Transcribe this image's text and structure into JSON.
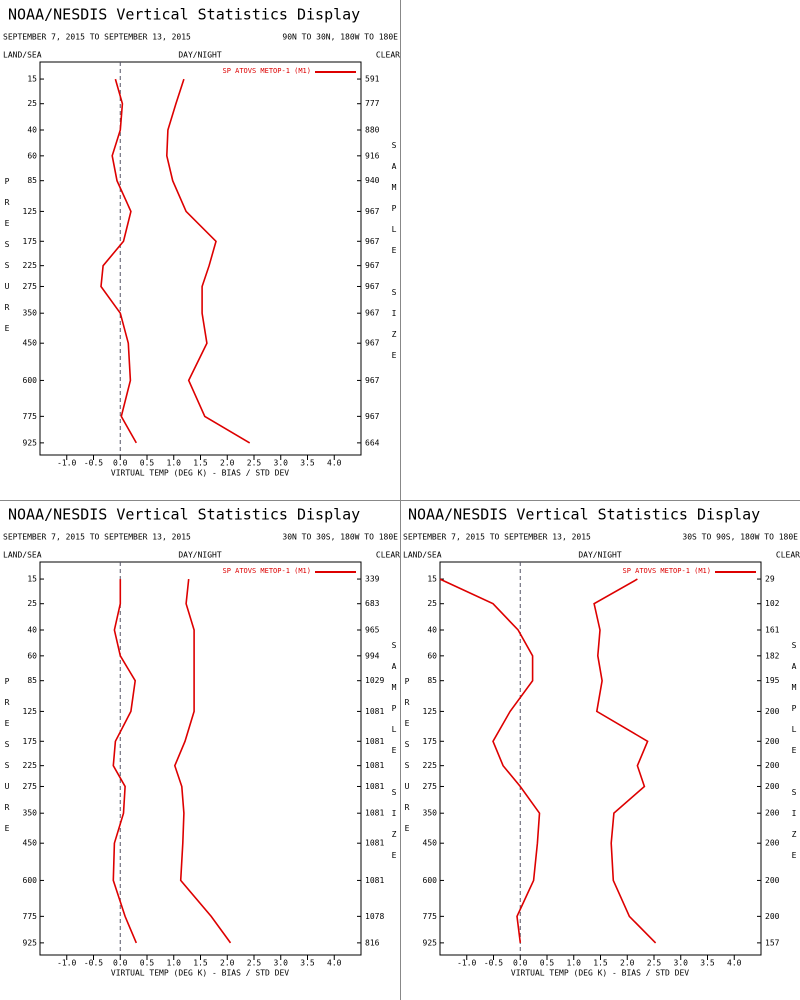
{
  "chart_data": [
    {
      "type": "line",
      "title": "NOAA/NESDIS Vertical Statistics Display",
      "subtitle": "SEPTEMBER 7, 2015 TO SEPTEMBER 13, 2015",
      "region": "90N TO 30N, 180W TO 180E",
      "land_sea": "LAND/SEA",
      "day_night": "DAY/NIGHT",
      "sky": "CLEAR",
      "y_label": "PRESSURE",
      "y2_label": "SAMPLE SIZE",
      "x_label": "VIRTUAL TEMP (DEG K) - BIAS / STD DEV",
      "y": [
        15,
        25,
        40,
        60,
        85,
        125,
        175,
        225,
        275,
        350,
        450,
        600,
        775,
        925
      ],
      "sample_size": [
        591,
        777,
        880,
        916,
        940,
        967,
        967,
        967,
        967,
        967,
        967,
        967,
        967,
        664
      ],
      "series": [
        {
          "name": "SP ATOVS METOP-1 (M1)",
          "color": "#dd0000",
          "bias": [
            -0.09,
            0.04,
            0.0,
            -0.15,
            -0.06,
            0.2,
            0.06,
            -0.32,
            -0.36,
            0.0,
            0.15,
            0.19,
            0.02,
            0.3
          ],
          "std_dev": [
            1.19,
            1.04,
            0.89,
            0.87,
            0.98,
            1.23,
            1.79,
            1.66,
            1.53,
            1.53,
            1.62,
            1.28,
            1.58,
            2.42
          ]
        }
      ],
      "reference_line": 0,
      "y_power": 0.3,
      "y_inverted": true,
      "xlim": [
        -1.5,
        4.5
      ],
      "ylim": [
        10,
        1000
      ],
      "xticks": [
        {
          "value": -1,
          "label": "-1.0"
        },
        -0.5,
        {
          "value": 0,
          "label": "0.0"
        },
        0.5,
        {
          "value": 1,
          "label": "1.0"
        },
        1.5,
        {
          "value": 2,
          "label": "2.0"
        },
        2.5,
        {
          "value": 3,
          "label": "3.0"
        },
        3.5,
        {
          "value": 4,
          "label": "4.0"
        }
      ]
    },
    {
      "type": "line",
      "title": "NOAA/NESDIS Vertical Statistics Display",
      "subtitle": "SEPTEMBER 7, 2015 TO SEPTEMBER 13, 2015",
      "region": "30N TO 30S, 180W TO 180E",
      "land_sea": "LAND/SEA",
      "day_night": "DAY/NIGHT",
      "sky": "CLEAR",
      "y_label": "PRESSURE",
      "y2_label": "SAMPLE SIZE",
      "x_label": "VIRTUAL TEMP (DEG K) - BIAS / STD DEV",
      "y": [
        15,
        25,
        40,
        60,
        85,
        125,
        175,
        225,
        275,
        350,
        450,
        600,
        775,
        925
      ],
      "sample_size": [
        339,
        683,
        965,
        994,
        1029,
        1081,
        1081,
        1081,
        1081,
        1081,
        1081,
        1081,
        1078,
        816
      ],
      "series": [
        {
          "name": "SP ATOVS METOP-1 (M1)",
          "color": "#dd0000",
          "bias": [
            0.0,
            0.0,
            -0.11,
            0.0,
            0.28,
            0.2,
            -0.09,
            -0.13,
            0.09,
            0.06,
            -0.11,
            -0.13,
            0.09,
            0.3
          ],
          "std_dev": [
            1.28,
            1.23,
            1.38,
            1.38,
            1.38,
            1.38,
            1.21,
            1.02,
            1.15,
            1.19,
            1.17,
            1.13,
            1.7,
            2.06
          ]
        }
      ],
      "reference_line": 0,
      "y_power": 0.3,
      "y_inverted": true,
      "xlim": [
        -1.5,
        4.5
      ],
      "ylim": [
        10,
        1000
      ],
      "xticks": [
        {
          "value": -1,
          "label": "-1.0"
        },
        -0.5,
        {
          "value": 0,
          "label": "0.0"
        },
        0.5,
        {
          "value": 1,
          "label": "1.0"
        },
        1.5,
        {
          "value": 2,
          "label": "2.0"
        },
        2.5,
        {
          "value": 3,
          "label": "3.0"
        },
        3.5,
        {
          "value": 4,
          "label": "4.0"
        }
      ]
    },
    {
      "type": "line",
      "title": "NOAA/NESDIS Vertical Statistics Display",
      "subtitle": "SEPTEMBER 7, 2015 TO SEPTEMBER 13, 2015",
      "region": "30S TO 90S, 180W TO 180E",
      "land_sea": "LAND/SEA",
      "day_night": "DAY/NIGHT",
      "sky": "CLEAR",
      "y_label": "PRESSURE",
      "y2_label": "SAMPLE SIZE",
      "x_label": "VIRTUAL TEMP (DEG K) - BIAS / STD DEV",
      "y": [
        15,
        25,
        40,
        60,
        85,
        125,
        175,
        225,
        275,
        350,
        450,
        600,
        775,
        925
      ],
      "sample_size": [
        29,
        102,
        161,
        182,
        195,
        200,
        200,
        200,
        200,
        200,
        200,
        200,
        200,
        157
      ],
      "series": [
        {
          "name": "SP ATOVS METOP-1 (M1)",
          "color": "#dd0000",
          "bias": [
            -1.5,
            -0.51,
            -0.04,
            0.23,
            0.23,
            -0.19,
            -0.51,
            -0.32,
            0.0,
            0.36,
            0.32,
            0.25,
            -0.06,
            0.0
          ],
          "std_dev": [
            2.19,
            1.38,
            1.49,
            1.45,
            1.53,
            1.43,
            2.38,
            2.19,
            2.32,
            1.75,
            1.7,
            1.74,
            2.04,
            2.53
          ]
        }
      ],
      "reference_line": 0,
      "y_power": 0.3,
      "y_inverted": true,
      "xlim": [
        -1.5,
        4.5
      ],
      "ylim": [
        10,
        1000
      ],
      "xticks": [
        {
          "value": -1,
          "label": "-1.0"
        },
        -0.5,
        {
          "value": 0,
          "label": "0.0"
        },
        0.5,
        {
          "value": 1,
          "label": "1.0"
        },
        1.5,
        {
          "value": 2,
          "label": "2.0"
        },
        2.5,
        {
          "value": 3,
          "label": "3.0"
        },
        3.5,
        {
          "value": 4,
          "label": "4.0"
        }
      ]
    }
  ]
}
